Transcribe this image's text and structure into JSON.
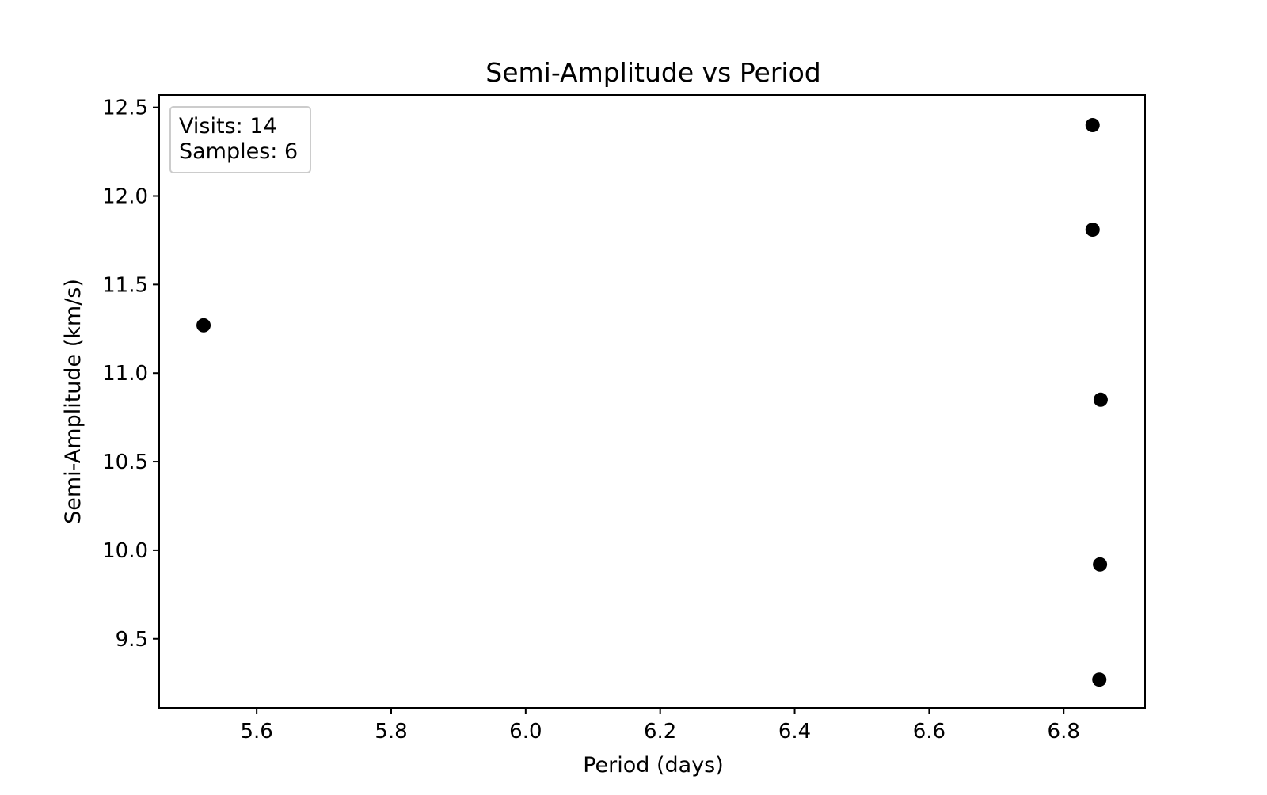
{
  "chart_data": {
    "type": "scatter",
    "title": "Semi-Amplitude vs Period",
    "xlabel": "Period (days)",
    "ylabel": "Semi-Amplitude (km/s)",
    "xlim": [
      5.455,
      6.921
    ],
    "ylim": [
      9.11,
      12.57
    ],
    "xticks": [
      5.6,
      5.8,
      6.0,
      6.2,
      6.4,
      6.6,
      6.8
    ],
    "xtick_labels": [
      "5.6",
      "5.8",
      "6.0",
      "6.2",
      "6.4",
      "6.6",
      "6.8"
    ],
    "yticks": [
      9.5,
      10.0,
      10.5,
      11.0,
      11.5,
      12.0,
      12.5
    ],
    "ytick_labels": [
      "9.5",
      "10.0",
      "10.5",
      "11.0",
      "11.5",
      "12.0",
      "12.5"
    ],
    "grid": false,
    "marker_color": "#000000",
    "points": [
      {
        "x": 5.521,
        "y": 11.27
      },
      {
        "x": 6.843,
        "y": 12.4
      },
      {
        "x": 6.843,
        "y": 11.81
      },
      {
        "x": 6.855,
        "y": 10.85
      },
      {
        "x": 6.854,
        "y": 9.92
      },
      {
        "x": 6.853,
        "y": 9.27
      }
    ],
    "annotation": {
      "lines": [
        "Visits: 14",
        "Samples: 6"
      ],
      "placement": "top-left"
    }
  }
}
